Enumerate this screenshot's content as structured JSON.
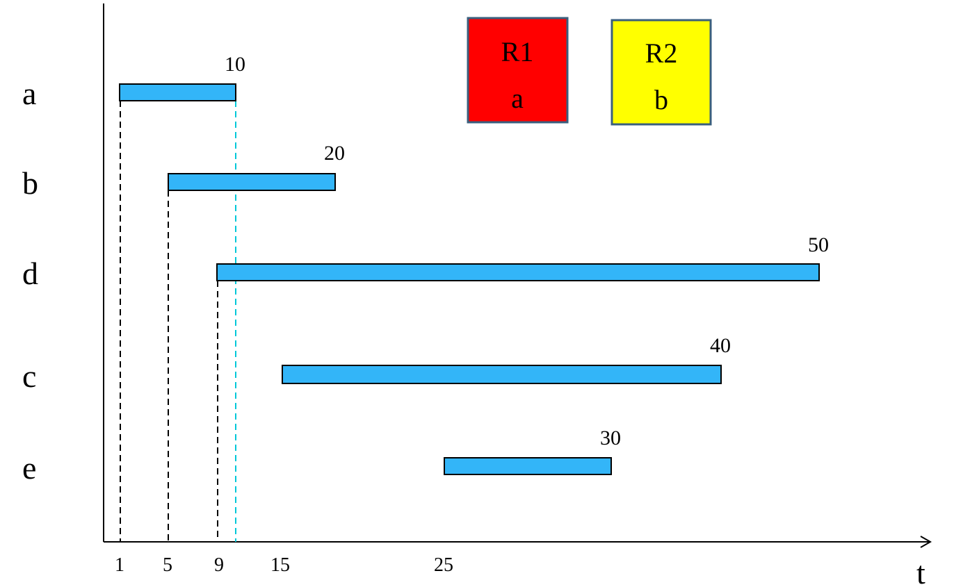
{
  "axis": {
    "x_label": "t",
    "ticks": [
      1,
      5,
      9,
      15,
      25
    ]
  },
  "tasks": [
    {
      "name": "a",
      "start": 1,
      "end_label": "10"
    },
    {
      "name": "b",
      "start": 5,
      "end_label": "20"
    },
    {
      "name": "d",
      "start": 9,
      "end_label": "50"
    },
    {
      "name": "c",
      "start": 15,
      "end_label": "40"
    },
    {
      "name": "e",
      "start": 25,
      "end_label": "30"
    }
  ],
  "resources": [
    {
      "name": "R1",
      "task": "a",
      "color": "#ff0000"
    },
    {
      "name": "R2",
      "task": "b",
      "color": "#ffff00"
    }
  ],
  "colors": {
    "bar": "#33b5f8",
    "marker_line": "#00c8d8"
  }
}
